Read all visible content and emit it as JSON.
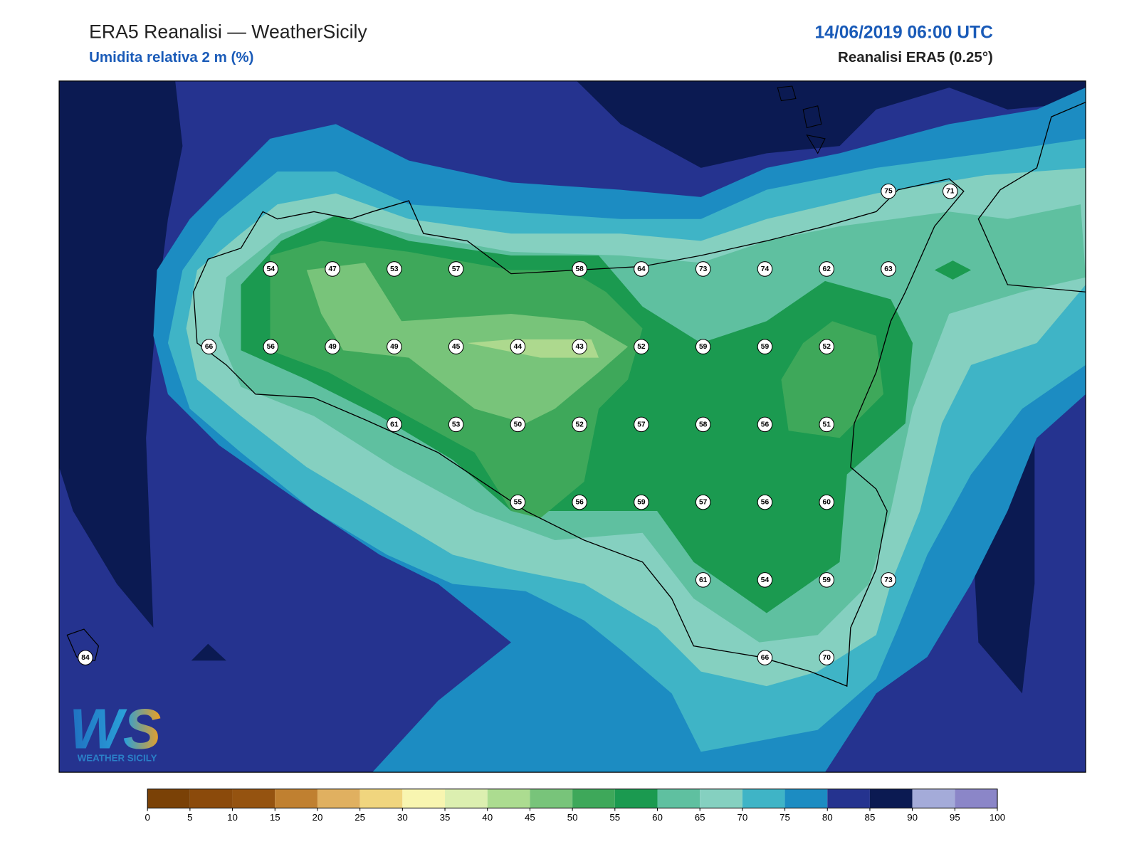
{
  "header": {
    "title": "ERA5 Reanalisi — WeatherSicily",
    "subtitle": "Umidita relativa 2 m (%)",
    "datetime": "14/06/2019 06:00 UTC",
    "source": "Reanalisi ERA5 (0.25°)"
  },
  "stations": [
    75,
    71,
    54,
    47,
    53,
    57,
    58,
    64,
    73,
    74,
    62,
    63,
    66,
    56,
    49,
    49,
    45,
    44,
    43,
    52,
    59,
    59,
    52,
    61,
    53,
    50,
    52,
    57,
    58,
    56,
    51,
    55,
    56,
    59,
    57,
    56,
    60,
    61,
    54,
    59,
    73,
    84,
    66,
    70
  ],
  "colorbar": {
    "ticks": [
      0,
      5,
      10,
      15,
      20,
      25,
      30,
      35,
      40,
      45,
      50,
      55,
      60,
      65,
      70,
      75,
      80,
      85,
      90,
      95,
      100
    ],
    "colors": [
      "#7a4106",
      "#8b4a0b",
      "#955310",
      "#c08030",
      "#e0b060",
      "#f0d57e",
      "#f8f5b0",
      "#dcefb0",
      "#acdc90",
      "#78c47a",
      "#3ea85a",
      "#1b9a50",
      "#5fc0a0",
      "#85d0c0",
      "#3fb4c6",
      "#1c8cc2",
      "#25338f",
      "#0b1a52",
      "#a4abd9",
      "#8b86c8"
    ]
  },
  "logo": {
    "mark": "WS",
    "name": "WEATHER SICILY"
  }
}
